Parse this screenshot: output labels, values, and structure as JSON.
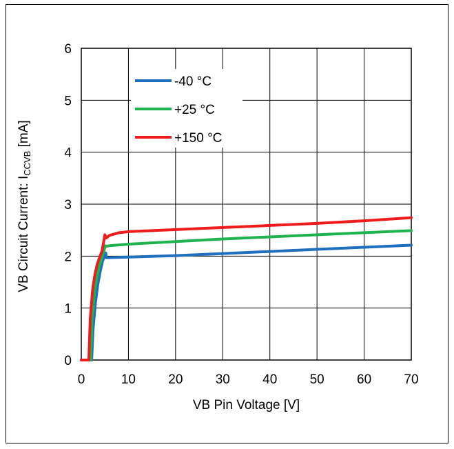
{
  "chart_data": {
    "type": "line",
    "xlabel": "VB Pin Voltage [V]",
    "ylabel_main": "VB Circuit Current: I",
    "ylabel_sub": "CCVB",
    "ylabel_unit": " [mA]",
    "xlim": [
      0,
      70
    ],
    "ylim": [
      0,
      6
    ],
    "xticks": [
      "0",
      "10",
      "20",
      "30",
      "40",
      "50",
      "60",
      "70"
    ],
    "yticks": [
      "0",
      "1",
      "2",
      "3",
      "4",
      "5",
      "6"
    ],
    "grid": true,
    "legend_position": "top-left",
    "series": [
      {
        "name": "-40 °C",
        "color": "#1f6fbf",
        "x": [
          0,
          2.2,
          2.5,
          3,
          3.5,
          4,
          4.5,
          5.0,
          5.2,
          5.3,
          5.5,
          10,
          20,
          30,
          40,
          50,
          60,
          70
        ],
        "y": [
          0,
          0,
          0.6,
          1.1,
          1.45,
          1.7,
          1.9,
          2.02,
          2.06,
          1.97,
          1.97,
          1.98,
          2.01,
          2.05,
          2.09,
          2.13,
          2.17,
          2.21
        ]
      },
      {
        "name": "+25 °C",
        "color": "#1fb350",
        "x": [
          0,
          2.0,
          2.3,
          2.8,
          3.3,
          3.8,
          4.3,
          4.8,
          5.1,
          5.3,
          6,
          10,
          20,
          30,
          40,
          50,
          60,
          70
        ],
        "y": [
          0,
          0,
          0.8,
          1.3,
          1.6,
          1.8,
          1.95,
          2.1,
          2.2,
          2.19,
          2.2,
          2.23,
          2.28,
          2.33,
          2.37,
          2.41,
          2.45,
          2.49
        ]
      },
      {
        "name": "+150 °C",
        "color": "#ee1c1c",
        "x": [
          0,
          1.6,
          1.9,
          2.4,
          2.9,
          3.4,
          3.9,
          4.4,
          4.8,
          5.0,
          5.3,
          6,
          8,
          10,
          20,
          30,
          40,
          50,
          60,
          70
        ],
        "y": [
          0,
          0,
          0.8,
          1.35,
          1.65,
          1.85,
          1.98,
          2.1,
          2.3,
          2.41,
          2.35,
          2.4,
          2.45,
          2.47,
          2.51,
          2.55,
          2.59,
          2.63,
          2.68,
          2.74
        ]
      }
    ]
  }
}
